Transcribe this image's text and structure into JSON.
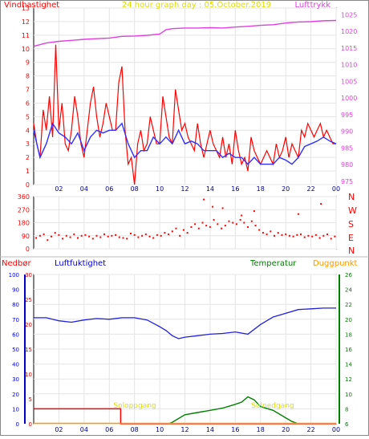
{
  "header": {
    "title_left": "Vindhastighet",
    "title_center": "24 hour graph day : 05.October.2019",
    "title_right": "Lufttrykk"
  },
  "direction_labels": [
    "N",
    "W",
    "S",
    "E",
    "N"
  ],
  "bottom_header": {
    "nedbor": "Nedbør",
    "luftfuktighet": "Luftfuktighet",
    "temperatur": "Temperatur",
    "duggpunkt": "Duggpunkt"
  },
  "annotations": {
    "sunrise": "Soloppgang",
    "sunset": "Solnedgang"
  },
  "x_ticks": [
    "02",
    "04",
    "06",
    "08",
    "10",
    "12",
    "14",
    "16",
    "18",
    "20",
    "22",
    "00"
  ],
  "colors": {
    "wind": "#ff0000",
    "wind_avg": "#3030ff",
    "pressure": "#e040e0",
    "humidity": "#2020dd",
    "temperature": "#008000",
    "rain": "#ff0000",
    "sun": "#dddd00",
    "dewpoint": "#ff9900",
    "frame": "#000000"
  },
  "chart_data": [
    {
      "type": "line",
      "title": "24 hour graph day : 05.October.2019",
      "x_unit": "hour",
      "x_range": [
        0,
        24
      ],
      "y_left_label": "Vindhastighet",
      "y_left_range": [
        0,
        13
      ],
      "y_left_ticks": [
        0,
        1,
        2,
        3,
        4,
        5,
        6,
        7,
        8,
        9,
        10,
        11,
        12,
        13
      ],
      "y_right_label": "Lufttrykk",
      "y_right_range": [
        974,
        1027
      ],
      "y_right_ticks": [
        975,
        980,
        985,
        990,
        995,
        1000,
        1005,
        1010,
        1015,
        1020,
        1025
      ],
      "series": [
        {
          "name": "Vindhastighet",
          "axis": "left",
          "x": [
            0.0,
            0.25,
            0.5,
            0.75,
            1.0,
            1.25,
            1.5,
            1.75,
            2.0,
            2.25,
            2.5,
            2.75,
            3.0,
            3.25,
            3.5,
            3.75,
            4.0,
            4.25,
            4.5,
            4.75,
            5.0,
            5.25,
            5.5,
            5.75,
            6.0,
            6.25,
            6.5,
            6.75,
            7.0,
            7.25,
            7.5,
            7.75,
            8.0,
            8.25,
            8.5,
            8.75,
            9.0,
            9.25,
            9.5,
            9.75,
            10.0,
            10.25,
            10.5,
            10.75,
            11.0,
            11.25,
            11.5,
            11.75,
            12.0,
            12.25,
            12.5,
            12.75,
            13.0,
            13.25,
            13.5,
            13.75,
            14.0,
            14.25,
            14.5,
            14.75,
            15.0,
            15.25,
            15.5,
            15.75,
            16.0,
            16.25,
            16.5,
            16.75,
            17.0,
            17.25,
            17.5,
            17.75,
            18.0,
            18.25,
            18.5,
            18.75,
            19.0,
            19.25,
            19.5,
            19.75,
            20.0,
            20.25,
            20.5,
            20.75,
            21.0,
            21.25,
            21.5,
            21.75,
            22.0,
            22.25,
            22.5,
            22.75,
            23.0,
            23.25,
            23.5,
            23.75,
            24.0
          ],
          "values": [
            4.5,
            3.0,
            2.0,
            5.5,
            4.0,
            6.5,
            3.5,
            10.3,
            4.0,
            6.0,
            3.0,
            2.5,
            4.0,
            6.5,
            5.0,
            3.0,
            2.0,
            4.0,
            6.0,
            7.2,
            5.0,
            3.5,
            4.5,
            6.0,
            5.0,
            4.0,
            4.0,
            7.5,
            8.7,
            4.0,
            1.5,
            2.0,
            0.0,
            3.0,
            4.0,
            2.5,
            3.0,
            5.0,
            4.0,
            3.0,
            3.0,
            6.5,
            5.0,
            3.5,
            3.0,
            7.0,
            5.5,
            4.0,
            4.5,
            3.5,
            3.0,
            2.5,
            4.5,
            3.0,
            2.0,
            3.0,
            4.0,
            3.0,
            2.5,
            2.0,
            3.5,
            2.0,
            3.0,
            1.5,
            4.0,
            2.5,
            1.5,
            2.0,
            1.0,
            3.5,
            2.5,
            2.0,
            1.5,
            2.0,
            2.5,
            2.0,
            1.5,
            3.0,
            2.0,
            2.5,
            3.5,
            2.0,
            3.0,
            2.5,
            2.0,
            4.0,
            3.5,
            4.5,
            4.0,
            3.5,
            4.0,
            4.5,
            3.5,
            4.0,
            3.5,
            3.0,
            3.0
          ]
        },
        {
          "name": "Vindhastighet snitt",
          "axis": "left",
          "x": [
            0.0,
            0.5,
            1.0,
            1.5,
            2.0,
            2.5,
            3.0,
            3.5,
            4.0,
            4.5,
            5.0,
            5.5,
            6.0,
            6.5,
            7.0,
            7.5,
            8.0,
            8.5,
            9.0,
            9.5,
            10.0,
            10.5,
            11.0,
            11.5,
            12.0,
            12.5,
            13.0,
            13.5,
            14.0,
            14.5,
            15.0,
            15.5,
            16.0,
            16.5,
            17.0,
            17.5,
            18.0,
            18.5,
            19.0,
            19.5,
            20.0,
            20.5,
            21.0,
            21.5,
            22.0,
            22.5,
            23.0,
            23.5,
            24.0
          ],
          "values": [
            4.0,
            2.0,
            3.0,
            4.5,
            3.8,
            3.5,
            3.0,
            3.8,
            2.5,
            3.5,
            4.0,
            3.8,
            4.0,
            4.0,
            4.5,
            3.0,
            2.0,
            2.5,
            2.5,
            3.5,
            3.0,
            3.5,
            3.0,
            4.0,
            3.0,
            3.2,
            3.0,
            2.5,
            2.5,
            2.5,
            2.0,
            2.3,
            2.0,
            2.0,
            1.5,
            2.0,
            1.5,
            1.5,
            1.5,
            2.0,
            1.8,
            1.5,
            2.0,
            2.8,
            3.0,
            3.2,
            3.5,
            3.2,
            3.0
          ]
        },
        {
          "name": "Lufttrykk",
          "axis": "right",
          "x": [
            0.0,
            1.0,
            2.0,
            3.0,
            4.0,
            5.0,
            6.0,
            7.0,
            8.0,
            9.0,
            10.0,
            10.5,
            11.0,
            12.0,
            13.0,
            14.0,
            15.0,
            16.0,
            17.0,
            18.0,
            19.0,
            20.0,
            21.0,
            22.0,
            23.0,
            24.0
          ],
          "values": [
            1015.5,
            1016.5,
            1017.0,
            1017.3,
            1017.6,
            1017.8,
            1018.0,
            1018.5,
            1018.6,
            1018.8,
            1019.2,
            1020.5,
            1020.8,
            1021.0,
            1021.0,
            1021.1,
            1021.0,
            1021.3,
            1021.5,
            1021.8,
            1022.0,
            1022.5,
            1022.8,
            1022.9,
            1023.2,
            1023.3
          ]
        }
      ]
    },
    {
      "type": "scatter",
      "x_unit": "hour",
      "x_range": [
        0,
        24
      ],
      "y_range": [
        0,
        360
      ],
      "y_ticks": [
        0,
        90,
        180,
        270,
        360
      ],
      "y_tick_labels": [
        "0",
        "90",
        "180",
        "270",
        "360"
      ],
      "series": [
        {
          "name": "Vindretning",
          "x": [
            0.2,
            0.5,
            0.8,
            1.1,
            1.4,
            1.7,
            2.0,
            2.3,
            2.6,
            2.9,
            3.2,
            3.5,
            3.8,
            4.1,
            4.4,
            4.7,
            5.0,
            5.3,
            5.6,
            5.9,
            6.2,
            6.5,
            6.8,
            7.1,
            7.4,
            7.7,
            8.0,
            8.3,
            8.6,
            8.9,
            9.2,
            9.5,
            9.8,
            10.1,
            10.4,
            10.7,
            11.0,
            11.3,
            11.6,
            11.9,
            12.2,
            12.5,
            12.8,
            13.1,
            13.4,
            13.7,
            14.0,
            14.3,
            14.6,
            14.9,
            15.2,
            15.5,
            15.8,
            16.1,
            16.4,
            16.7,
            17.0,
            17.3,
            17.6,
            17.9,
            18.2,
            18.5,
            18.8,
            19.1,
            19.4,
            19.7,
            20.0,
            20.3,
            20.6,
            20.9,
            21.2,
            21.5,
            21.8,
            22.1,
            22.4,
            22.7,
            23.0,
            23.3,
            23.6,
            23.9,
            13.5,
            14.2,
            15.0,
            16.5,
            17.5,
            21.0,
            22.8
          ],
          "values": [
            75,
            90,
            100,
            60,
            85,
            110,
            95,
            70,
            90,
            80,
            100,
            75,
            90,
            95,
            85,
            70,
            90,
            80,
            100,
            85,
            90,
            95,
            80,
            75,
            70,
            105,
            95,
            80,
            90,
            100,
            85,
            75,
            95,
            90,
            110,
            100,
            120,
            140,
            90,
            130,
            110,
            150,
            170,
            140,
            180,
            160,
            150,
            200,
            170,
            140,
            160,
            190,
            180,
            170,
            200,
            180,
            150,
            190,
            160,
            130,
            110,
            100,
            120,
            90,
            110,
            95,
            100,
            90,
            85,
            95,
            100,
            80,
            90,
            85,
            95,
            75,
            90,
            100,
            70,
            85,
            340,
            290,
            280,
            230,
            260,
            240,
            310
          ]
        }
      ]
    },
    {
      "type": "line",
      "x_unit": "hour",
      "x_range": [
        0,
        24
      ],
      "y_left_label": "Nedbør",
      "y_left_range": [
        0,
        100
      ],
      "y_left_ticks": [
        0,
        10,
        20,
        30,
        40,
        50,
        60,
        70,
        80,
        90,
        100
      ],
      "y_left2_label": "Luftfuktighet",
      "y_left2_range": [
        0,
        30
      ],
      "y_left2_ticks": [
        0,
        5,
        10,
        15,
        20,
        25,
        30
      ],
      "y_right_label": "Temperatur",
      "y_right_range": [
        6,
        26
      ],
      "y_right_ticks": [
        6,
        8,
        10,
        12,
        14,
        16,
        18,
        20,
        22,
        24,
        26
      ],
      "series": [
        {
          "name": "Luftfuktighet",
          "axis": "right",
          "x": [
            0.0,
            1.0,
            2.0,
            3.0,
            4.0,
            5.0,
            6.0,
            7.0,
            8.0,
            9.0,
            10.0,
            10.5,
            11.0,
            11.5,
            12.0,
            13.0,
            14.0,
            15.0,
            16.0,
            17.0,
            18.0,
            19.0,
            20.0,
            21.0,
            22.0,
            23.0,
            24.0
          ],
          "values": [
            20.2,
            20.2,
            19.8,
            19.6,
            19.9,
            20.1,
            20.0,
            20.2,
            20.2,
            19.9,
            19.0,
            18.5,
            17.8,
            17.4,
            17.6,
            17.8,
            18.0,
            18.1,
            18.3,
            18.0,
            19.3,
            20.3,
            20.8,
            21.3,
            21.4,
            21.5,
            21.5
          ]
        },
        {
          "name": "Nedbør",
          "axis": "left2",
          "x": [
            0.0,
            6.9,
            6.9,
            24.0
          ],
          "values": [
            3.0,
            3.0,
            0.0,
            0.0
          ]
        },
        {
          "name": "Temperatur",
          "axis": "right",
          "x": [
            10.7,
            11.0,
            12.0,
            13.0,
            14.0,
            15.0,
            16.0,
            16.5,
            17.0,
            17.5,
            18.0,
            19.0,
            20.0,
            20.5,
            21.0
          ],
          "values": [
            6.0,
            6.2,
            7.2,
            7.5,
            7.8,
            8.1,
            8.6,
            8.9,
            9.6,
            9.2,
            8.3,
            7.8,
            6.8,
            6.3,
            6.0
          ]
        },
        {
          "name": "Duggpunkt",
          "axis": "right",
          "x": [
            0.0,
            24.0
          ],
          "values": [
            6.05,
            6.05
          ]
        }
      ]
    }
  ]
}
